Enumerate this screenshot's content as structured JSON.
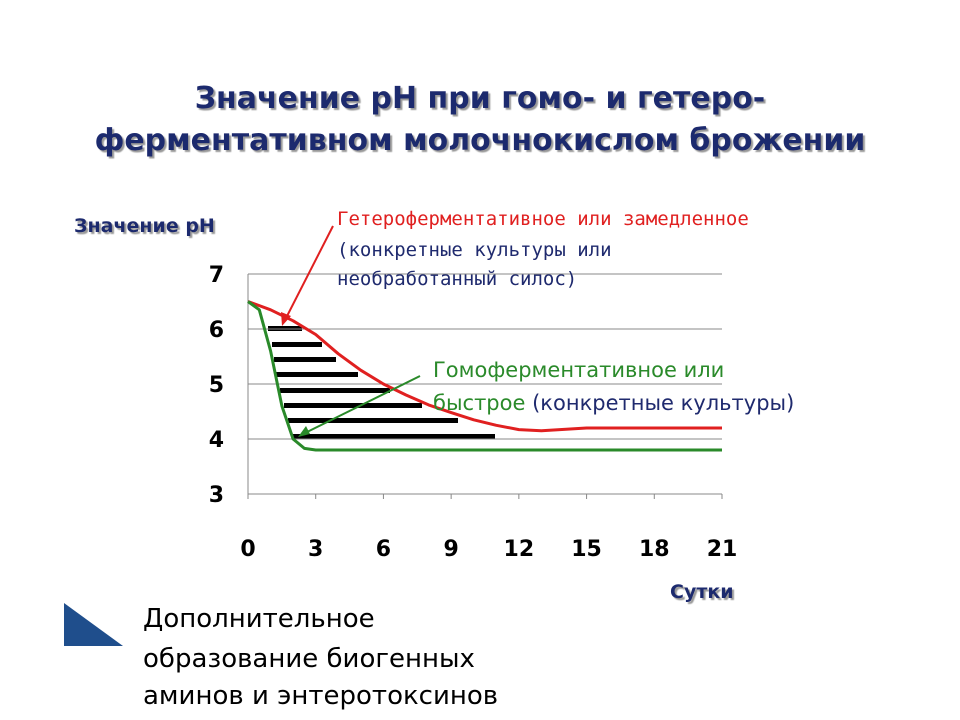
{
  "chart_data": {
    "type": "line",
    "title": [
      "Значение pH при гомо- и гетеро-",
      "ферментативном молочнокислом брожении"
    ],
    "y_label": "Значение pH",
    "x_label": "Сутки",
    "xlim": [
      0,
      21
    ],
    "xticks": [
      0,
      3,
      6,
      9,
      12,
      15,
      18,
      21
    ],
    "ylim": [
      3,
      7
    ],
    "yticks": [
      3,
      4,
      5,
      6,
      7
    ],
    "grid": true,
    "series": [
      {
        "name": "Гетероферментативное",
        "color": "#e02020",
        "x": [
          0,
          1,
          2,
          3,
          4,
          5,
          6,
          7,
          8,
          9,
          10,
          11,
          12,
          13,
          15,
          18,
          21
        ],
        "values": [
          6.5,
          6.35,
          6.15,
          5.9,
          5.55,
          5.25,
          5.0,
          4.8,
          4.62,
          4.48,
          4.35,
          4.25,
          4.17,
          4.15,
          4.2,
          4.2,
          4.2
        ]
      },
      {
        "name": "Гомоферментативное",
        "color": "#2a8a2a",
        "x": [
          0,
          0.5,
          1,
          1.5,
          2,
          2.5,
          3,
          4,
          21
        ],
        "values": [
          6.5,
          6.35,
          5.6,
          4.6,
          4.0,
          3.83,
          3.8,
          3.8,
          3.8
        ]
      }
    ],
    "annotations": [
      {
        "text": "Гетероферментативное или замедленное",
        "color": "#e02020"
      },
      {
        "text": "(конкретные культуры или",
        "color": "#1f2a6e"
      },
      {
        "text": "необработанный силос)",
        "color": "#1f2a6e"
      },
      {
        "text": "Гомоферментативное или",
        "color": "#2a8a2a"
      },
      {
        "text": "быстрое",
        "color": "#2a8a2a"
      },
      {
        "text": "(конкретные культуры)",
        "color": "#1f2a6e"
      }
    ],
    "footnote": [
      "Дополнительное",
      "образование биогенных",
      "аминов и энтеротоксинов"
    ]
  }
}
